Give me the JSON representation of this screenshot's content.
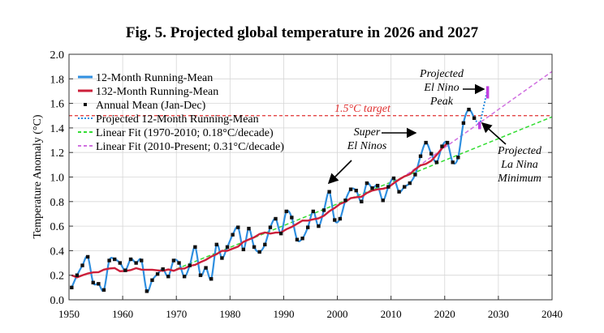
{
  "chart_data": {
    "type": "line",
    "title": "Fig. 5. Projected global temperature in 2026 and 2027",
    "xlabel": "",
    "ylabel": "Temperature Anomaly (°C)",
    "xlim": [
      1950,
      2040
    ],
    "ylim": [
      0.0,
      2.0
    ],
    "x_ticks": [
      "1950",
      "1960",
      "1970",
      "1980",
      "1990",
      "2000",
      "2010",
      "2020",
      "2030",
      "2040"
    ],
    "y_ticks": [
      "0.0",
      "0.2",
      "0.4",
      "0.6",
      "0.8",
      "1.0",
      "1.2",
      "1.4",
      "1.6",
      "1.8",
      "2.0"
    ],
    "grid": true,
    "legend_position": "top-left",
    "legend": [
      {
        "label": "12-Month Running-Mean",
        "color": "#2f8fe0",
        "style": "solid"
      },
      {
        "label": "132-Month Running-Mean",
        "color": "#cc1f3a",
        "style": "solid"
      },
      {
        "label": "Annual Mean (Jan-Dec)",
        "color": "#111111",
        "style": "marker"
      },
      {
        "label": "Projected 12-Month Running-Mean",
        "color": "#2f8fe0",
        "style": "dotted"
      },
      {
        "label": "Linear Fit (1970-2010; 0.18°C/decade)",
        "color": "#33dd33",
        "style": "dashed"
      },
      {
        "label": "Linear Fit (2010-Present; 0.31°C/decade)",
        "color": "#d070e0",
        "style": "dashed"
      }
    ],
    "annual_mean": {
      "x": [
        1950,
        1951,
        1952,
        1953,
        1954,
        1955,
        1956,
        1957,
        1958,
        1959,
        1960,
        1961,
        1962,
        1963,
        1964,
        1965,
        1966,
        1967,
        1968,
        1969,
        1970,
        1971,
        1972,
        1973,
        1974,
        1975,
        1976,
        1977,
        1978,
        1979,
        1980,
        1981,
        1982,
        1983,
        1984,
        1985,
        1986,
        1987,
        1988,
        1989,
        1990,
        1991,
        1992,
        1993,
        1994,
        1995,
        1996,
        1997,
        1998,
        1999,
        2000,
        2001,
        2002,
        2003,
        2004,
        2005,
        2006,
        2007,
        2008,
        2009,
        2010,
        2011,
        2012,
        2013,
        2014,
        2015,
        2016,
        2017,
        2018,
        2019,
        2020,
        2021,
        2022,
        2023,
        2024,
        2025
      ],
      "y": [
        0.1,
        0.2,
        0.28,
        0.35,
        0.14,
        0.13,
        0.08,
        0.32,
        0.33,
        0.3,
        0.24,
        0.33,
        0.3,
        0.32,
        0.07,
        0.16,
        0.21,
        0.25,
        0.19,
        0.32,
        0.3,
        0.19,
        0.28,
        0.43,
        0.2,
        0.26,
        0.17,
        0.45,
        0.34,
        0.43,
        0.53,
        0.59,
        0.41,
        0.58,
        0.43,
        0.39,
        0.45,
        0.59,
        0.66,
        0.54,
        0.72,
        0.67,
        0.49,
        0.5,
        0.59,
        0.72,
        0.6,
        0.73,
        0.88,
        0.65,
        0.66,
        0.81,
        0.9,
        0.89,
        0.8,
        0.95,
        0.91,
        0.93,
        0.81,
        0.92,
        0.99,
        0.88,
        0.92,
        0.95,
        1.02,
        1.17,
        1.28,
        1.19,
        1.12,
        1.25,
        1.28,
        1.12,
        1.16,
        1.44,
        1.55,
        1.48
      ]
    },
    "projected_12_month": {
      "x": [
        2025.8,
        2026.5,
        2028.0
      ],
      "y": [
        1.46,
        1.42,
        1.72
      ]
    },
    "projected_markers": [
      {
        "x": 2026.5,
        "y_range": [
          1.39,
          1.45
        ],
        "label": "La Nina minimum"
      },
      {
        "x": 2028.0,
        "y_range": [
          1.64,
          1.74
        ],
        "label": "El Nino peak"
      }
    ],
    "target_line": {
      "y": 1.5,
      "label": "1.5°C target",
      "color": "#e03030"
    },
    "fit_1970_2010": {
      "x": [
        1970,
        2040
      ],
      "y": [
        0.25,
        1.49
      ],
      "slope_per_decade": 0.18
    },
    "fit_2010_present": {
      "x": [
        2010,
        2040
      ],
      "y": [
        0.93,
        1.86
      ],
      "slope_per_decade": 0.31
    },
    "annotations": [
      {
        "lines": [
          "Super",
          "El Ninos"
        ]
      },
      {
        "lines": [
          "Projected",
          "El Nino",
          "Peak"
        ]
      },
      {
        "lines": [
          "Projected",
          "La Nina",
          "Minimum"
        ]
      }
    ]
  }
}
